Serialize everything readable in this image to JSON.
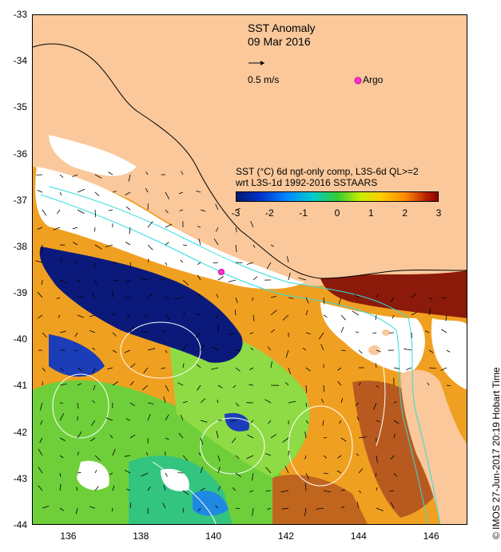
{
  "map": {
    "title": "SST Anomaly",
    "date": "09 Mar 2016",
    "vector_scale_label": "0.5 m/s",
    "argo_label": "Argo",
    "legend_line1": "SST (°C) 6d ngt-only comp, L3S-6d QL>=2",
    "legend_line2": "wrt L3S-1d 1992-2016 SSTAARS",
    "colorbar_ticks": [
      "-3",
      "-2",
      "-1",
      "0",
      "1",
      "2",
      "3"
    ],
    "y_axis_ticks": [
      "-33",
      "-34",
      "-35",
      "-36",
      "-37",
      "-38",
      "-39",
      "-40",
      "-41",
      "-42",
      "-43",
      "-44"
    ],
    "x_axis_ticks": [
      "136",
      "138",
      "140",
      "142",
      "144",
      "146"
    ],
    "side_text": "© IMOS 27-Jun-2017 20:19 Hobart Time",
    "colors": {
      "land": "#fac89b",
      "argo_marker": "#ff33cc",
      "no_data": "#ffffff"
    }
  }
}
